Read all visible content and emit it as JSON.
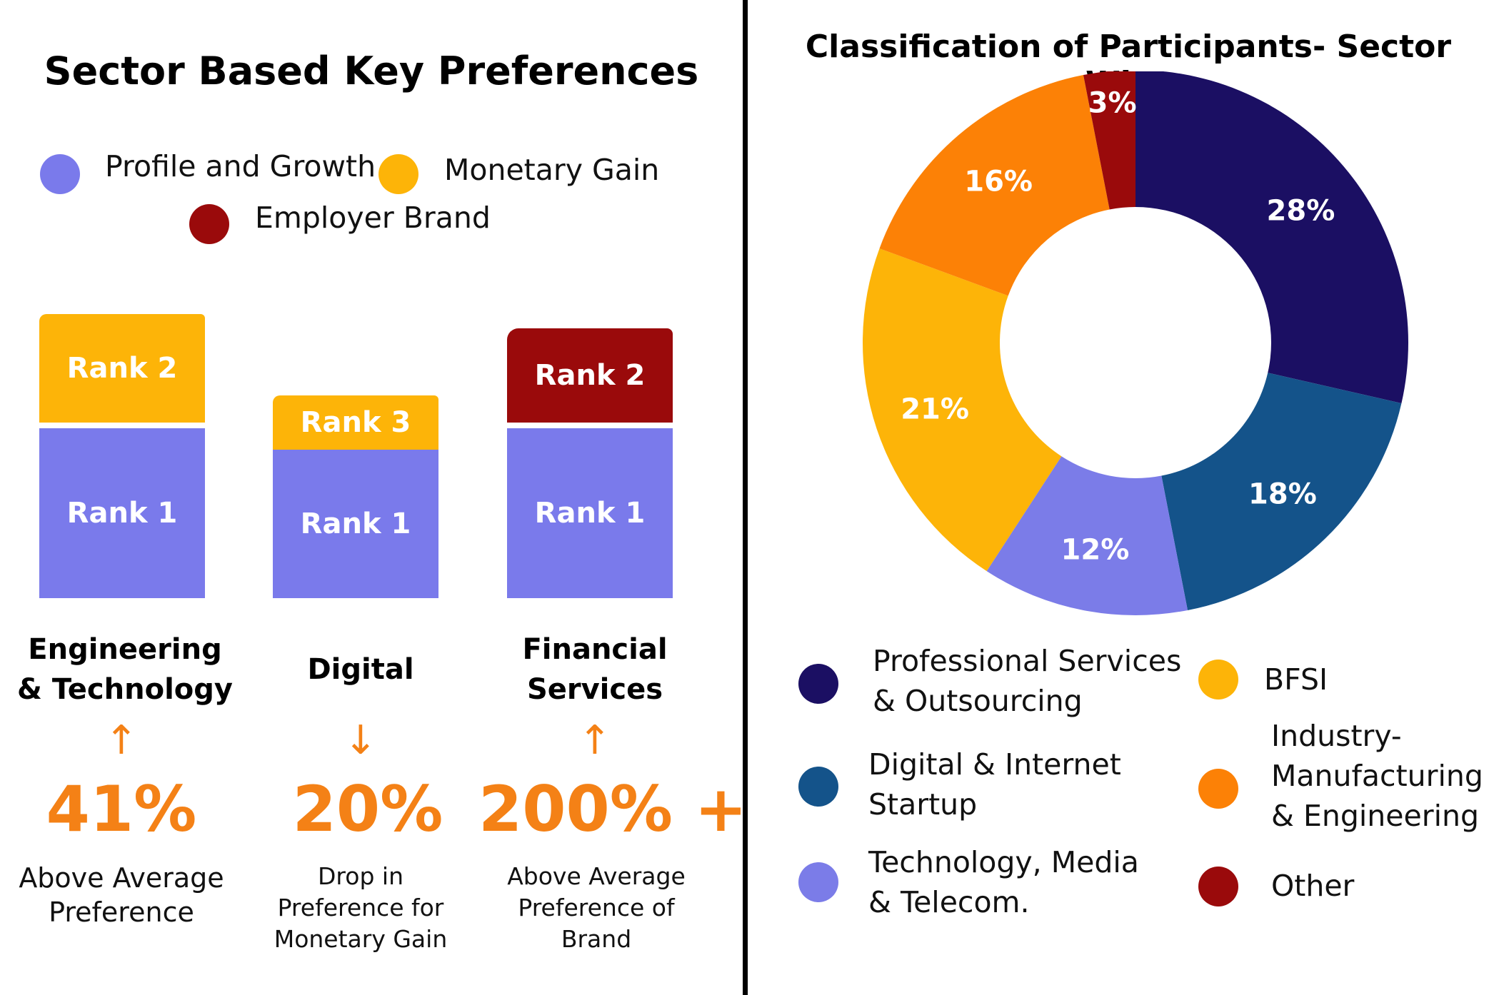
{
  "left": {
    "title": "Sector Based Key Preferences",
    "legend": [
      {
        "label": "Profile and Growth",
        "color": "#7a7aeb"
      },
      {
        "label": "Monetary Gain",
        "color": "#fdb408"
      },
      {
        "label": "Employer Brand",
        "color": "#9a0a0b"
      }
    ],
    "sectors": [
      {
        "name_line1": "Engineering",
        "name_line2": "& Technology",
        "rank1": "Rank 1",
        "rank2": "Rank 2",
        "rank2_color": "#fdb408",
        "arrow": "↑",
        "change": "41%",
        "note_line1": "Above Average",
        "note_line2": "Preference",
        "note_line3": ""
      },
      {
        "name_line1": "Digital",
        "name_line2": "",
        "rank1": "Rank 1",
        "rank2": "Rank 3",
        "rank2_color": "#fdb408",
        "arrow": "↓",
        "change": "20%",
        "note_line1": "Drop in",
        "note_line2": "Preference for",
        "note_line3": "Monetary Gain"
      },
      {
        "name_line1": "Financial",
        "name_line2": "Services",
        "rank1": "Rank 1",
        "rank2": "Rank 2",
        "rank2_color": "#9a0a0b",
        "arrow": "↑",
        "change": "200% +",
        "note_line1": "Above Average",
        "note_line2": "Preference of",
        "note_line3": "Brand"
      }
    ]
  },
  "right": {
    "title": "Classification of Participants- Sector Wise",
    "legend": {
      "professional": [
        "Professional Services",
        "& Outsourcing"
      ],
      "digital": [
        "Digital & Internet",
        "Startup"
      ],
      "tmt": [
        "Technology, Media",
        "& Telecom."
      ],
      "bfsi": [
        "BFSI"
      ],
      "industry": [
        "Industry-",
        "Manufacturing",
        "& Engineering"
      ],
      "other": [
        "Other"
      ]
    }
  },
  "chart_data": {
    "type": "pie",
    "title": "Classification of Participants- Sector Wise",
    "donut": true,
    "legend_position": "bottom",
    "series": [
      {
        "name": "Professional Services & Outsourcing",
        "value": 28,
        "label": "28%",
        "color": "#1b0f63"
      },
      {
        "name": "Digital & Internet Startup",
        "value": 18,
        "label": "18%",
        "color": "#14538a"
      },
      {
        "name": "Technology, Media & Telecom.",
        "value": 12,
        "label": "12%",
        "color": "#7b7ce8"
      },
      {
        "name": "BFSI",
        "value": 21,
        "label": "21%",
        "color": "#fdb408"
      },
      {
        "name": "Industry-Manufacturing & Engineering",
        "value": 16,
        "label": "16%",
        "color": "#fc8106"
      },
      {
        "name": "Other",
        "value": 3,
        "label": "3%",
        "color": "#9a0a0b"
      }
    ]
  }
}
